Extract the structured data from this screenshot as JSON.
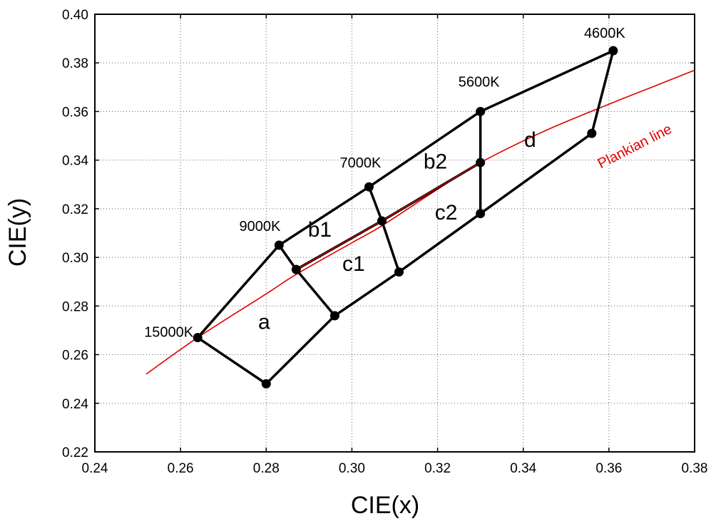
{
  "chart_data": {
    "type": "line",
    "xlabel": "CIE(x)",
    "ylabel": "CIE(y)",
    "xlim": [
      0.24,
      0.38
    ],
    "ylim": [
      0.22,
      0.4
    ],
    "x_ticks": [
      "0.24",
      "0.26",
      "0.28",
      "0.30",
      "0.32",
      "0.34",
      "0.36",
      "0.38"
    ],
    "y_ticks": [
      "0.22",
      "0.24",
      "0.26",
      "0.28",
      "0.30",
      "0.32",
      "0.34",
      "0.36",
      "0.38",
      "0.40"
    ],
    "grid": true,
    "points": [
      {
        "id": "p15000",
        "x": 0.264,
        "y": 0.267,
        "label": "15000K"
      },
      {
        "id": "pA",
        "x": 0.28,
        "y": 0.248
      },
      {
        "id": "p9000",
        "x": 0.283,
        "y": 0.305,
        "label": "9000K"
      },
      {
        "id": "pB",
        "x": 0.287,
        "y": 0.295
      },
      {
        "id": "pC",
        "x": 0.296,
        "y": 0.276
      },
      {
        "id": "p7000",
        "x": 0.304,
        "y": 0.329,
        "label": "7000K"
      },
      {
        "id": "pD",
        "x": 0.307,
        "y": 0.315
      },
      {
        "id": "pE",
        "x": 0.311,
        "y": 0.294
      },
      {
        "id": "p5600",
        "x": 0.33,
        "y": 0.36,
        "label": "5600K"
      },
      {
        "id": "pF",
        "x": 0.33,
        "y": 0.339
      },
      {
        "id": "pG",
        "x": 0.33,
        "y": 0.318
      },
      {
        "id": "pH",
        "x": 0.356,
        "y": 0.351
      },
      {
        "id": "p4600",
        "x": 0.361,
        "y": 0.385,
        "label": "4600K"
      }
    ],
    "segments": [
      [
        "p15000",
        "pA"
      ],
      [
        "pA",
        "pC"
      ],
      [
        "pC",
        "pE"
      ],
      [
        "pE",
        "pG"
      ],
      [
        "pG",
        "pH"
      ],
      [
        "pH",
        "p4600"
      ],
      [
        "p15000",
        "p9000"
      ],
      [
        "p9000",
        "p7000"
      ],
      [
        "p7000",
        "p5600"
      ],
      [
        "p5600",
        "p4600"
      ],
      [
        "p9000",
        "pB"
      ],
      [
        "pB",
        "pC"
      ],
      [
        "p7000",
        "pD"
      ],
      [
        "pD",
        "pE"
      ],
      [
        "p5600",
        "pF"
      ],
      [
        "pF",
        "pG"
      ],
      [
        "pB",
        "pD"
      ],
      [
        "pD",
        "pF"
      ]
    ],
    "regions": [
      {
        "label": "a",
        "x": 0.2795,
        "y": 0.2705
      },
      {
        "label": "b1",
        "x": 0.2925,
        "y": 0.3085
      },
      {
        "label": "c1",
        "x": 0.3004,
        "y": 0.2945
      },
      {
        "label": "b2",
        "x": 0.3195,
        "y": 0.3365
      },
      {
        "label": "c2",
        "x": 0.322,
        "y": 0.3155
      },
      {
        "label": "d",
        "x": 0.3416,
        "y": 0.3455
      }
    ],
    "series": [
      {
        "name": "Plankian line",
        "color": "#e00000",
        "x": [
          0.252,
          0.264,
          0.28,
          0.287,
          0.3,
          0.307,
          0.32,
          0.33,
          0.345,
          0.36,
          0.37,
          0.38
        ],
        "y": [
          0.252,
          0.267,
          0.285,
          0.293,
          0.306,
          0.313,
          0.328,
          0.339,
          0.352,
          0.363,
          0.37,
          0.377
        ]
      }
    ],
    "curve_label_anchor": {
      "x": 0.3665,
      "y": 0.344
    },
    "colors": {
      "frame": "#000000",
      "marker": "#000000",
      "plankian": "#e00000",
      "grid": "#666666"
    }
  }
}
